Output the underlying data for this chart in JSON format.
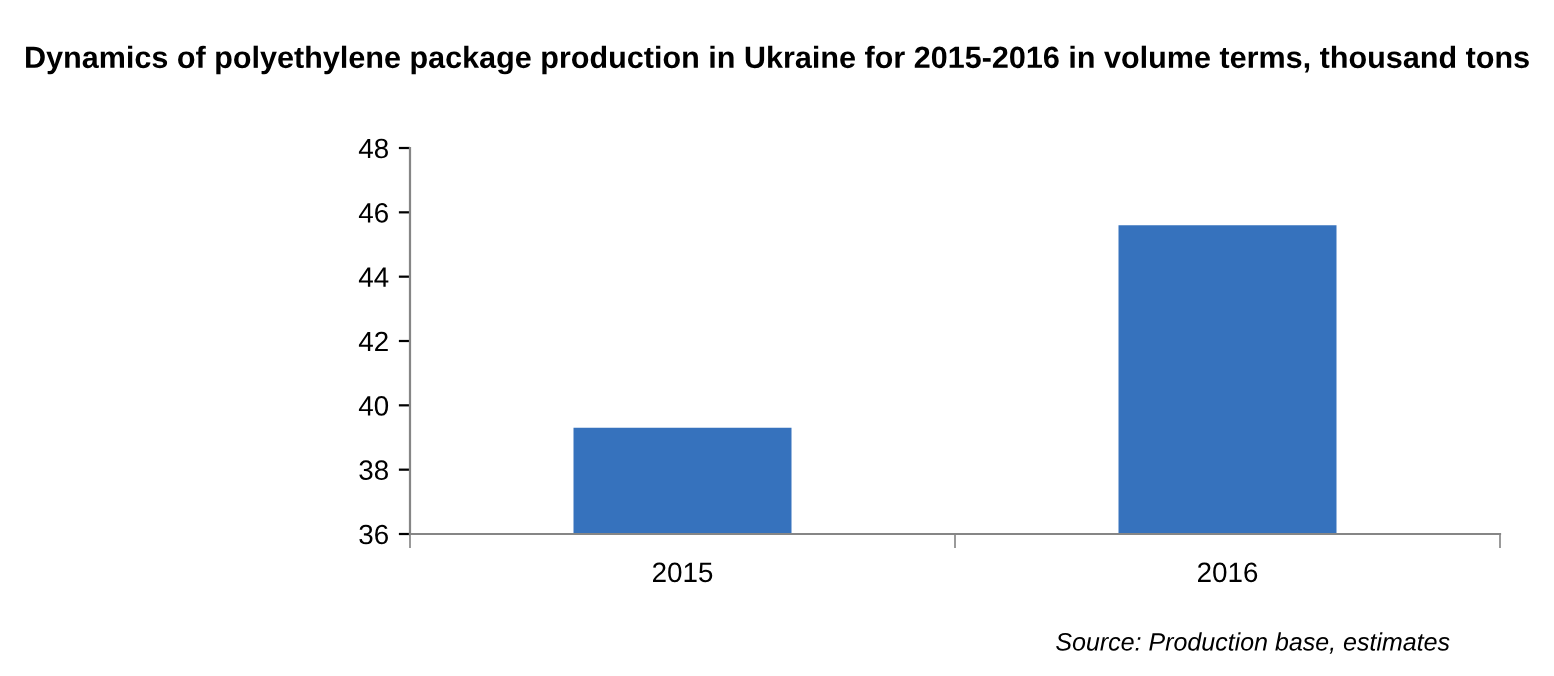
{
  "chart_data": {
    "type": "bar",
    "title": "Dynamics of polyethylene package production in Ukraine for 2015-2016 in volume terms, thousand tons",
    "categories": [
      "2015",
      "2016"
    ],
    "values": [
      39.3,
      45.6
    ],
    "color": "#3672bd",
    "ylim": [
      36,
      48
    ],
    "yticks": [
      36,
      38,
      40,
      42,
      44,
      46,
      48
    ],
    "grid": false,
    "legend": false,
    "annotations": [
      "Source: Production base, estimates"
    ]
  }
}
